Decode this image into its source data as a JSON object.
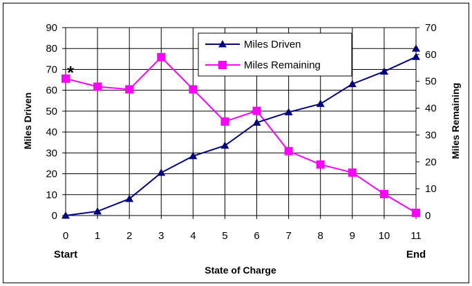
{
  "chart_data": {
    "type": "line",
    "x": [
      0,
      1,
      2,
      3,
      4,
      5,
      6,
      7,
      8,
      9,
      10,
      11
    ],
    "x_tick_labels": [
      "0",
      "1",
      "2",
      "3",
      "4",
      "5",
      "6",
      "7",
      "8",
      "9",
      "10",
      "11"
    ],
    "x_start_label": "Start",
    "x_end_label": "End",
    "xlabel": "State of Charge",
    "ylabel_left": "Miles Driven",
    "ylabel_right": "Miles Remaining",
    "ylim_left": [
      0,
      90
    ],
    "ylim_right": [
      0,
      70
    ],
    "y_left_ticks": [
      "0",
      "10",
      "20",
      "30",
      "40",
      "50",
      "60",
      "70",
      "80",
      "90"
    ],
    "y_right_ticks": [
      "0",
      "10",
      "20",
      "30",
      "40",
      "50",
      "60",
      "70"
    ],
    "annotation": "*",
    "grid": true,
    "legend_placement": "top-center",
    "series": [
      {
        "name": "Miles Driven",
        "axis": "left",
        "marker": "triangle",
        "color": "#000080",
        "values": [
          0,
          2,
          8,
          20.5,
          28.5,
          33.5,
          44.5,
          49.5,
          53.5,
          63,
          69,
          76
        ],
        "extra_point": {
          "x": 11,
          "y": 80
        }
      },
      {
        "name": "Miles Remaining",
        "axis": "right",
        "marker": "square",
        "color": "#ff00ff",
        "values": [
          51,
          48,
          47,
          59,
          47,
          35,
          39,
          24,
          19,
          16,
          8,
          1
        ]
      }
    ]
  }
}
